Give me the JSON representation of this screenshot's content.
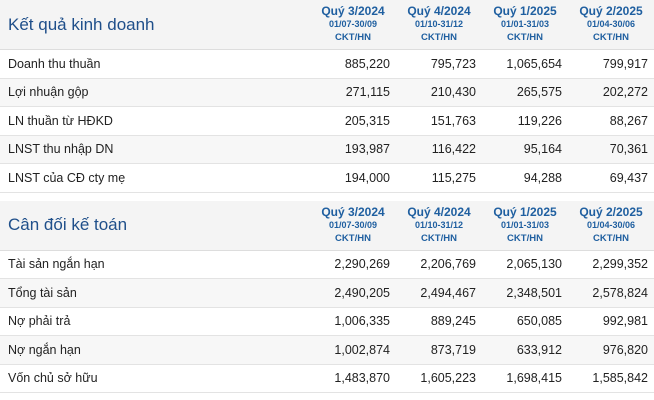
{
  "income": {
    "title": "Kết quả kinh doanh",
    "periods": [
      {
        "quarter": "Quý 3/2024",
        "dates": "01/07-30/09",
        "unit": "CKT/HN"
      },
      {
        "quarter": "Quý 4/2024",
        "dates": "01/10-31/12",
        "unit": "CKT/HN"
      },
      {
        "quarter": "Quý 1/2025",
        "dates": "01/01-31/03",
        "unit": "CKT/HN"
      },
      {
        "quarter": "Quý 2/2025",
        "dates": "01/04-30/06",
        "unit": "CKT/HN"
      }
    ],
    "rows": [
      {
        "label": "Doanh thu thuần",
        "values": [
          "885,220",
          "795,723",
          "1,065,654",
          "799,917"
        ]
      },
      {
        "label": "Lợi nhuận gộp",
        "values": [
          "271,115",
          "210,430",
          "265,575",
          "202,272"
        ]
      },
      {
        "label": "LN thuần từ HĐKD",
        "values": [
          "205,315",
          "151,763",
          "119,226",
          "88,267"
        ]
      },
      {
        "label": "LNST thu nhập DN",
        "values": [
          "193,987",
          "116,422",
          "95,164",
          "70,361"
        ]
      },
      {
        "label": "LNST của CĐ cty mẹ",
        "values": [
          "194,000",
          "115,275",
          "94,288",
          "69,437"
        ]
      }
    ]
  },
  "balance": {
    "title": "Cân đối kế toán",
    "periods": [
      {
        "quarter": "Quý 3/2024",
        "dates": "01/07-30/09",
        "unit": "CKT/HN"
      },
      {
        "quarter": "Quý 4/2024",
        "dates": "01/10-31/12",
        "unit": "CKT/HN"
      },
      {
        "quarter": "Quý 1/2025",
        "dates": "01/01-31/03",
        "unit": "CKT/HN"
      },
      {
        "quarter": "Quý 2/2025",
        "dates": "01/04-30/06",
        "unit": "CKT/HN"
      }
    ],
    "rows": [
      {
        "label": "Tài sản ngắn hạn",
        "values": [
          "2,290,269",
          "2,206,769",
          "2,065,130",
          "2,299,352"
        ]
      },
      {
        "label": "Tổng tài sản",
        "values": [
          "2,490,205",
          "2,494,467",
          "2,348,501",
          "2,578,824"
        ]
      },
      {
        "label": "Nợ phải trả",
        "values": [
          "1,006,335",
          "889,245",
          "650,085",
          "992,981"
        ]
      },
      {
        "label": "Nợ ngắn hạn",
        "values": [
          "1,002,874",
          "873,719",
          "633,912",
          "976,820"
        ]
      },
      {
        "label": "Vốn chủ sở hữu",
        "values": [
          "1,483,870",
          "1,605,223",
          "1,698,415",
          "1,585,842"
        ]
      }
    ]
  }
}
